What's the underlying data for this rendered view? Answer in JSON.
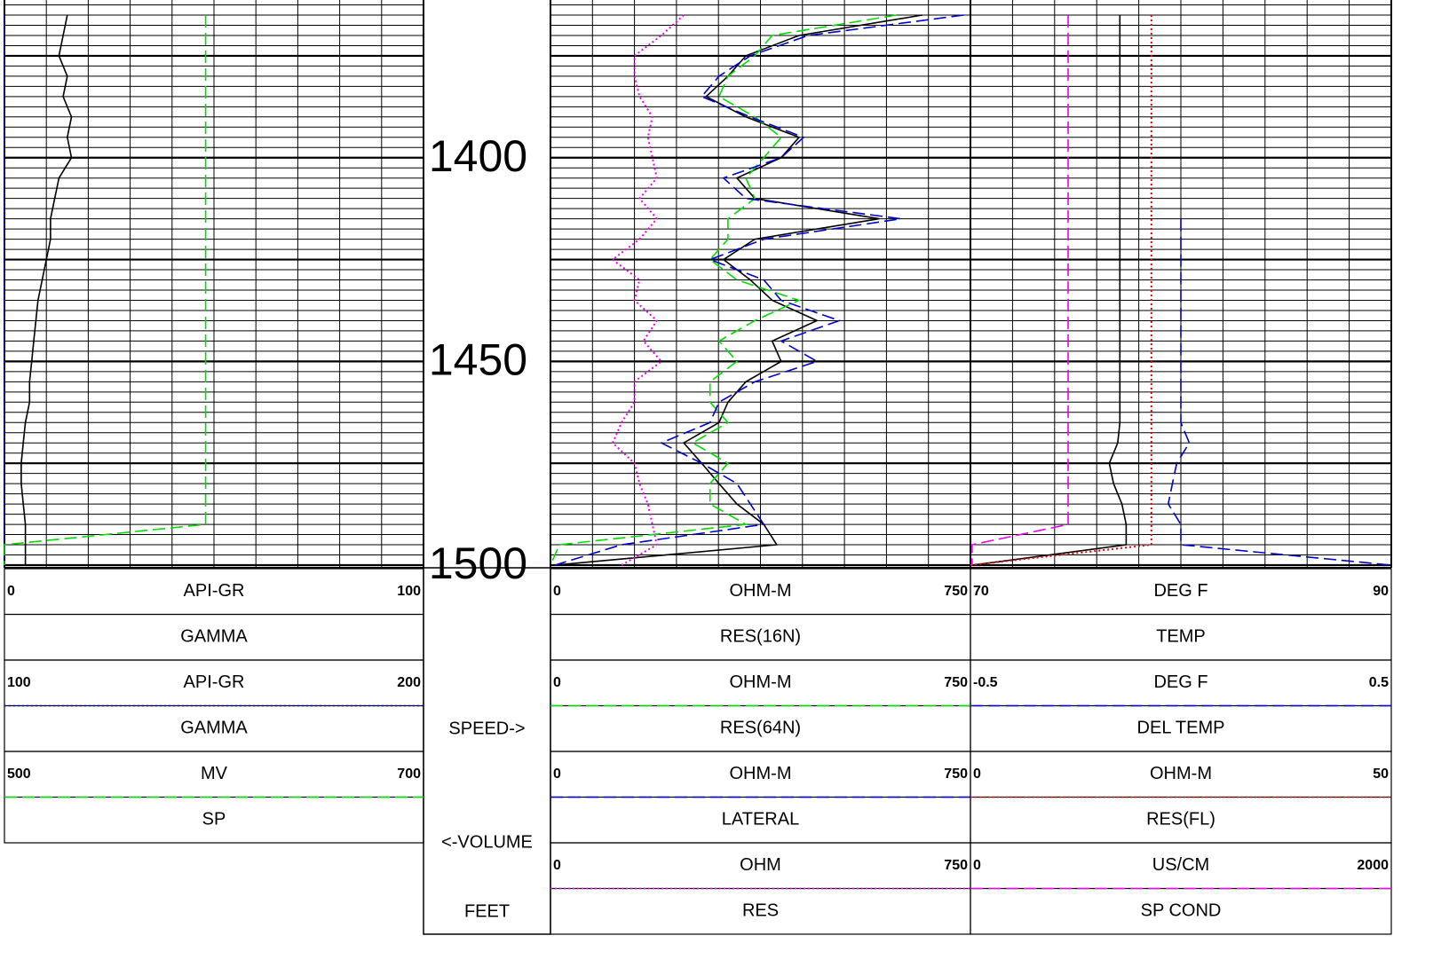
{
  "chart_data": {
    "type": "well-log",
    "ylim": [
      1361.3,
      1500
    ],
    "yticks": [
      1400,
      1450,
      1500
    ],
    "depth_column_labels": [
      "SPEED->",
      "<-VOLUME",
      "FEET"
    ],
    "depth": [
      1365,
      1370,
      1375,
      1380,
      1385,
      1390,
      1395,
      1400,
      1405,
      1410,
      1415,
      1420,
      1425,
      1430,
      1435,
      1440,
      1445,
      1450,
      1455,
      1460,
      1465,
      1470,
      1475,
      1480,
      1485,
      1490,
      1495,
      1500
    ],
    "grid": true,
    "tracks": [
      {
        "curves": [
          {
            "name": "GAMMA",
            "unit": "API-GR",
            "xlim": [
              0,
              100
            ],
            "color": "#000000",
            "dash": "solid",
            "values": [
              15,
              14,
              13,
              15,
              14,
              16,
              15,
              16,
              13,
              12,
              11,
              11,
              10,
              9,
              8,
              7.5,
              7,
              6.5,
              6,
              6,
              5,
              4.5,
              4,
              4,
              4.5,
              5,
              5,
              5
            ]
          },
          {
            "name": "GAMMA",
            "unit": "API-GR",
            "xlim": [
              100,
              200
            ],
            "color": "#0000cc",
            "dash": "dotted",
            "values": [
              100,
              100,
              100,
              100,
              100,
              100,
              100,
              100,
              100,
              100,
              100,
              100,
              100,
              100,
              100,
              100,
              100,
              100,
              100,
              100,
              100,
              100,
              100,
              100,
              100,
              100,
              100,
              100
            ]
          },
          {
            "name": "SP",
            "unit": "MV",
            "xlim": [
              500,
              700
            ],
            "color": "#00dd00",
            "dash": "dashed",
            "values": [
              596,
              596,
              596,
              596,
              596,
              596,
              596,
              596,
              596,
              596,
              596,
              596,
              596,
              596,
              596,
              596,
              596,
              596,
              596,
              596,
              596,
              596,
              596,
              596,
              596,
              596,
              500,
              500
            ]
          }
        ]
      },
      {
        "curves": [
          {
            "name": "RES(16N)",
            "unit": "OHM-M",
            "xlim": [
              0,
              750
            ],
            "color": "#000000",
            "dash": "solid",
            "values": [
              664,
              444,
              349,
              317,
              278,
              349,
              444,
              412,
              333,
              365,
              587,
              365,
              309,
              357,
              396,
              476,
              396,
              412,
              349,
              317,
              301,
              238,
              270,
              301,
              333,
              381,
              404,
              8
            ]
          },
          {
            "name": "RES(64N)",
            "unit": "OHM-M",
            "xlim": [
              0,
              750
            ],
            "color": "#00dd00",
            "dash": "dashed",
            "values": [
              618,
              396,
              365,
              317,
              301,
              365,
              412,
              381,
              349,
              365,
              317,
              317,
              285,
              333,
              444,
              365,
              301,
              333,
              285,
              285,
              317,
              254,
              317,
              285,
              285,
              349,
              16,
              0
            ]
          },
          {
            "name": "LATERAL",
            "unit": "OHM-M",
            "xlim": [
              0,
              750
            ],
            "color": "#0000cc",
            "dash": "dashed",
            "values": [
              738,
              460,
              357,
              301,
              270,
              357,
              452,
              412,
              309,
              349,
              626,
              381,
              285,
              381,
              412,
              516,
              412,
              476,
              365,
              301,
              285,
              198,
              270,
              333,
              357,
              381,
              127,
              8
            ]
          },
          {
            "name": "RES",
            "unit": "OHM",
            "xlim": [
              0,
              750
            ],
            "color": "#ee00ee",
            "dash": "dotted",
            "values": [
              238,
              198,
              150,
              150,
              159,
              182,
              174,
              182,
              190,
              159,
              190,
              159,
              111,
              159,
              150,
              190,
              166,
              198,
              150,
              150,
              127,
              111,
              150,
              159,
              174,
              182,
              190,
              127
            ]
          }
        ]
      },
      {
        "curves": [
          {
            "name": "TEMP",
            "unit": "DEG F",
            "xlim": [
              70,
              90
            ],
            "color": "#000000",
            "dash": "solid",
            "values": [
              77.1,
              77.1,
              77.1,
              77.1,
              77.1,
              77.1,
              77.1,
              77.1,
              77.1,
              77.1,
              77.1,
              77.1,
              77.1,
              77.1,
              77.1,
              77.1,
              77.1,
              77.1,
              77.1,
              77.1,
              77.1,
              77.0,
              76.6,
              76.8,
              77.2,
              77.4,
              77.4,
              70.1
            ]
          },
          {
            "name": "DEL TEMP",
            "unit": "DEG F",
            "xlim": [
              -0.5,
              0.5
            ],
            "color": "#0000cc",
            "dash": "dashed",
            "values": [
              null,
              null,
              null,
              null,
              null,
              null,
              null,
              null,
              null,
              null,
              0,
              0,
              0,
              0,
              0,
              0,
              0,
              0,
              0,
              0,
              0,
              0.02,
              -0.01,
              -0.02,
              -0.03,
              0,
              0,
              0.5
            ]
          },
          {
            "name": "RES(FL)",
            "unit": "OHM-M",
            "xlim": [
              0,
              50
            ],
            "color": "#ee0000",
            "dash": "dotted",
            "values": [
              21.5,
              21.5,
              21.5,
              21.5,
              21.5,
              21.5,
              21.5,
              21.5,
              21.5,
              21.5,
              21.5,
              21.5,
              21.5,
              21.5,
              21.5,
              21.5,
              21.5,
              21.5,
              21.5,
              21.5,
              21.5,
              21.5,
              21.5,
              21.5,
              21.5,
              21.5,
              21.5,
              0
            ]
          },
          {
            "name": "SP COND",
            "unit": "US/CM",
            "xlim": [
              0,
              2000
            ],
            "color": "#ee00ee",
            "dash": "dashed",
            "values": [
              464,
              464,
              464,
              464,
              464,
              464,
              464,
              464,
              464,
              464,
              464,
              464,
              464,
              464,
              464,
              464,
              464,
              464,
              464,
              464,
              464,
              464,
              464,
              464,
              464,
              464,
              8,
              8
            ]
          }
        ]
      }
    ]
  }
}
